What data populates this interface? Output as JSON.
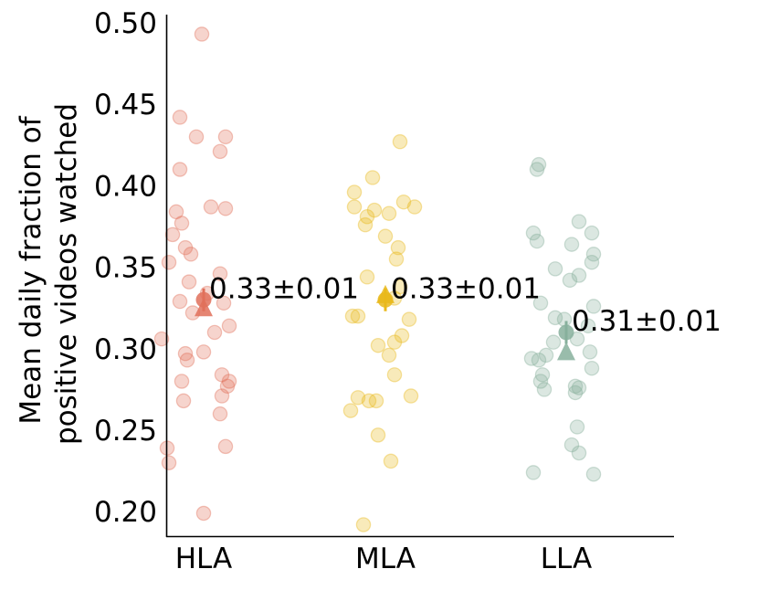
{
  "chart_data": {
    "type": "scatter",
    "title": "",
    "xlabel": "",
    "ylabel_lines": [
      "Mean daily fraction of",
      "positive videos watched"
    ],
    "categories": [
      "HLA",
      "MLA",
      "LLA"
    ],
    "ylim": [
      0.185,
      0.505
    ],
    "yticks": [
      "0.20",
      "0.25",
      "0.30",
      "0.35",
      "0.40",
      "0.45",
      "0.50"
    ],
    "ytick_values": [
      0.2,
      0.25,
      0.3,
      0.35,
      0.4,
      0.45,
      0.5
    ],
    "grid": false,
    "legend": "none",
    "series": [
      {
        "category": "HLA",
        "color": "#e0705a",
        "mean": 0.33,
        "median": 0.325,
        "error": 0.007,
        "annotation": "0.33±0.01",
        "points": [
          {
            "x": -0.01,
            "y": 0.493
          },
          {
            "x": -0.13,
            "y": 0.442
          },
          {
            "x": -0.04,
            "y": 0.43
          },
          {
            "x": 0.12,
            "y": 0.43
          },
          {
            "x": 0.09,
            "y": 0.421
          },
          {
            "x": -0.13,
            "y": 0.41
          },
          {
            "x": 0.04,
            "y": 0.387
          },
          {
            "x": 0.12,
            "y": 0.386
          },
          {
            "x": -0.15,
            "y": 0.384
          },
          {
            "x": -0.12,
            "y": 0.377
          },
          {
            "x": -0.17,
            "y": 0.37
          },
          {
            "x": -0.1,
            "y": 0.362
          },
          {
            "x": -0.07,
            "y": 0.358
          },
          {
            "x": 0.09,
            "y": 0.346
          },
          {
            "x": -0.19,
            "y": 0.353
          },
          {
            "x": -0.08,
            "y": 0.341
          },
          {
            "x": 0.02,
            "y": 0.334
          },
          {
            "x": -0.13,
            "y": 0.329
          },
          {
            "x": 0.11,
            "y": 0.328
          },
          {
            "x": -0.06,
            "y": 0.322
          },
          {
            "x": 0.14,
            "y": 0.314
          },
          {
            "x": 0.06,
            "y": 0.31
          },
          {
            "x": -0.23,
            "y": 0.306
          },
          {
            "x": 0.0,
            "y": 0.298
          },
          {
            "x": -0.1,
            "y": 0.297
          },
          {
            "x": -0.09,
            "y": 0.293
          },
          {
            "x": 0.1,
            "y": 0.284
          },
          {
            "x": 0.14,
            "y": 0.28
          },
          {
            "x": -0.12,
            "y": 0.28
          },
          {
            "x": 0.13,
            "y": 0.277
          },
          {
            "x": 0.1,
            "y": 0.271
          },
          {
            "x": -0.11,
            "y": 0.268
          },
          {
            "x": 0.09,
            "y": 0.26
          },
          {
            "x": 0.12,
            "y": 0.24
          },
          {
            "x": -0.2,
            "y": 0.239
          },
          {
            "x": -0.19,
            "y": 0.23
          },
          {
            "x": 0.0,
            "y": 0.199
          }
        ]
      },
      {
        "category": "MLA",
        "color": "#e9b81b",
        "mean": 0.33,
        "median": 0.333,
        "error": 0.007,
        "annotation": "0.33±0.01",
        "points": [
          {
            "x": 0.08,
            "y": 0.427
          },
          {
            "x": -0.07,
            "y": 0.405
          },
          {
            "x": -0.17,
            "y": 0.396
          },
          {
            "x": 0.1,
            "y": 0.39
          },
          {
            "x": 0.16,
            "y": 0.387
          },
          {
            "x": -0.17,
            "y": 0.387
          },
          {
            "x": -0.06,
            "y": 0.385
          },
          {
            "x": 0.02,
            "y": 0.383
          },
          {
            "x": -0.1,
            "y": 0.381
          },
          {
            "x": -0.11,
            "y": 0.376
          },
          {
            "x": 0.0,
            "y": 0.369
          },
          {
            "x": 0.07,
            "y": 0.362
          },
          {
            "x": 0.06,
            "y": 0.355
          },
          {
            "x": -0.1,
            "y": 0.344
          },
          {
            "x": 0.08,
            "y": 0.338
          },
          {
            "x": 0.05,
            "y": 0.331
          },
          {
            "x": -0.18,
            "y": 0.32
          },
          {
            "x": 0.13,
            "y": 0.318
          },
          {
            "x": -0.15,
            "y": 0.32
          },
          {
            "x": 0.09,
            "y": 0.308
          },
          {
            "x": 0.05,
            "y": 0.304
          },
          {
            "x": -0.04,
            "y": 0.302
          },
          {
            "x": 0.02,
            "y": 0.296
          },
          {
            "x": 0.05,
            "y": 0.284
          },
          {
            "x": -0.15,
            "y": 0.27
          },
          {
            "x": 0.14,
            "y": 0.271
          },
          {
            "x": -0.09,
            "y": 0.268
          },
          {
            "x": -0.05,
            "y": 0.268
          },
          {
            "x": -0.19,
            "y": 0.262
          },
          {
            "x": -0.04,
            "y": 0.247
          },
          {
            "x": 0.03,
            "y": 0.231
          },
          {
            "x": -0.12,
            "y": 0.192
          }
        ]
      },
      {
        "category": "LLA",
        "color": "#87b09c",
        "mean": 0.31,
        "median": 0.298,
        "error": 0.007,
        "annotation": "0.31±0.01",
        "points": [
          {
            "x": -0.15,
            "y": 0.413
          },
          {
            "x": -0.16,
            "y": 0.41
          },
          {
            "x": 0.07,
            "y": 0.378
          },
          {
            "x": -0.18,
            "y": 0.371
          },
          {
            "x": 0.14,
            "y": 0.371
          },
          {
            "x": -0.16,
            "y": 0.366
          },
          {
            "x": 0.03,
            "y": 0.364
          },
          {
            "x": 0.15,
            "y": 0.358
          },
          {
            "x": 0.14,
            "y": 0.353
          },
          {
            "x": -0.06,
            "y": 0.349
          },
          {
            "x": 0.07,
            "y": 0.345
          },
          {
            "x": 0.02,
            "y": 0.342
          },
          {
            "x": -0.14,
            "y": 0.328
          },
          {
            "x": 0.15,
            "y": 0.326
          },
          {
            "x": -0.06,
            "y": 0.319
          },
          {
            "x": -0.01,
            "y": 0.318
          },
          {
            "x": 0.12,
            "y": 0.314
          },
          {
            "x": 0.06,
            "y": 0.306
          },
          {
            "x": -0.07,
            "y": 0.304
          },
          {
            "x": 0.13,
            "y": 0.298
          },
          {
            "x": -0.11,
            "y": 0.296
          },
          {
            "x": -0.19,
            "y": 0.294
          },
          {
            "x": -0.15,
            "y": 0.293
          },
          {
            "x": 0.14,
            "y": 0.288
          },
          {
            "x": -0.13,
            "y": 0.284
          },
          {
            "x": -0.14,
            "y": 0.28
          },
          {
            "x": 0.05,
            "y": 0.277
          },
          {
            "x": -0.12,
            "y": 0.275
          },
          {
            "x": 0.07,
            "y": 0.276
          },
          {
            "x": 0.05,
            "y": 0.273
          },
          {
            "x": 0.06,
            "y": 0.252
          },
          {
            "x": 0.03,
            "y": 0.241
          },
          {
            "x": 0.07,
            "y": 0.236
          },
          {
            "x": -0.18,
            "y": 0.224
          },
          {
            "x": 0.15,
            "y": 0.223
          }
        ]
      }
    ]
  }
}
